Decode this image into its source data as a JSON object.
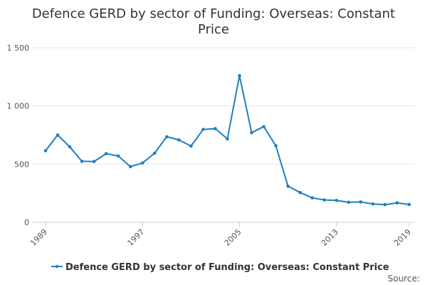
{
  "chart_data": {
    "type": "line",
    "title": "Defence GERD by sector of Funding: Overseas: Constant Price",
    "title_lines": [
      "Defence GERD by sector of Funding: Overseas: Constant",
      "Price"
    ],
    "xlabel": "",
    "ylabel": "",
    "x": [
      1989,
      1990,
      1991,
      1992,
      1993,
      1994,
      1995,
      1996,
      1997,
      1998,
      1999,
      2000,
      2001,
      2002,
      2003,
      2004,
      2005,
      2006,
      2007,
      2008,
      2009,
      2010,
      2011,
      2012,
      2013,
      2014,
      2015,
      2016,
      2017,
      2018,
      2019
    ],
    "x_tick_labels": [
      "1989",
      "1997",
      "2005",
      "2013",
      "2019"
    ],
    "x_ticks": [
      1989,
      1997,
      2005,
      2013,
      2019
    ],
    "y_tick_labels": [
      "0",
      "500",
      "1 000",
      "1 500"
    ],
    "y_ticks": [
      0,
      500,
      1000,
      1500
    ],
    "ylim": [
      0,
      1500
    ],
    "xlim": [
      1989,
      2019
    ],
    "grid": true,
    "legend_position": "bottom",
    "series": [
      {
        "name": "Defence GERD by sector of Funding: Overseas: Constant Price",
        "color": "#1f7fbf",
        "values": [
          615,
          750,
          648,
          524,
          522,
          590,
          570,
          478,
          510,
          594,
          735,
          708,
          655,
          798,
          805,
          717,
          1260,
          770,
          822,
          658,
          310,
          256,
          210,
          192,
          188,
          172,
          175,
          158,
          152,
          167,
          153
        ]
      }
    ]
  },
  "source_label": "Source:"
}
